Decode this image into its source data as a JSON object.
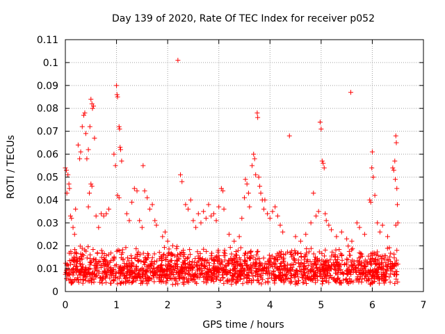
{
  "chart_data": {
    "type": "scatter",
    "title": "Day 139 of 2020, Rate Of TEC Index for receiver p052",
    "xlabel": "GPS time / hours",
    "ylabel": "ROTI / TECUs",
    "xlim": [
      0,
      7
    ],
    "ylim": [
      0,
      0.11
    ],
    "xticks": [
      "0",
      "1",
      "2",
      "3",
      "4",
      "5",
      "6",
      "7"
    ],
    "yticks": [
      "0",
      "0.01",
      "0.02",
      "0.03",
      "0.04",
      "0.05",
      "0.06",
      "0.07",
      "0.08",
      "0.09",
      "0.1",
      "0.11"
    ],
    "grid": true,
    "marker": "+",
    "color": "#ff0000",
    "series": [
      {
        "name": "ROTI",
        "points": [
          [
            0.0,
            0.054
          ],
          [
            0.02,
            0.053
          ],
          [
            0.03,
            0.043
          ],
          [
            0.05,
            0.051
          ],
          [
            0.07,
            0.047
          ],
          [
            0.08,
            0.045
          ],
          [
            0.1,
            0.033
          ],
          [
            0.12,
            0.032
          ],
          [
            0.15,
            0.028
          ],
          [
            0.18,
            0.025
          ],
          [
            0.2,
            0.036
          ],
          [
            0.25,
            0.064
          ],
          [
            0.28,
            0.058
          ],
          [
            0.3,
            0.061
          ],
          [
            0.33,
            0.072
          ],
          [
            0.36,
            0.077
          ],
          [
            0.38,
            0.078
          ],
          [
            0.4,
            0.069
          ],
          [
            0.42,
            0.058
          ],
          [
            0.45,
            0.062
          ],
          [
            0.48,
            0.072
          ],
          [
            0.5,
            0.084
          ],
          [
            0.52,
            0.082
          ],
          [
            0.53,
            0.08
          ],
          [
            0.55,
            0.081
          ],
          [
            0.57,
            0.067
          ],
          [
            0.5,
            0.047
          ],
          [
            0.52,
            0.046
          ],
          [
            0.45,
            0.037
          ],
          [
            0.47,
            0.043
          ],
          [
            0.6,
            0.033
          ],
          [
            0.65,
            0.028
          ],
          [
            0.7,
            0.034
          ],
          [
            0.75,
            0.033
          ],
          [
            0.8,
            0.034
          ],
          [
            0.85,
            0.036
          ],
          [
            0.95,
            0.06
          ],
          [
            0.98,
            0.055
          ],
          [
            1.0,
            0.09
          ],
          [
            1.01,
            0.086
          ],
          [
            1.02,
            0.085
          ],
          [
            1.05,
            0.072
          ],
          [
            1.06,
            0.071
          ],
          [
            1.07,
            0.063
          ],
          [
            1.08,
            0.062
          ],
          [
            1.1,
            0.057
          ],
          [
            1.02,
            0.042
          ],
          [
            1.05,
            0.041
          ],
          [
            1.2,
            0.034
          ],
          [
            1.25,
            0.031
          ],
          [
            1.3,
            0.039
          ],
          [
            1.35,
            0.045
          ],
          [
            1.4,
            0.044
          ],
          [
            1.45,
            0.031
          ],
          [
            1.5,
            0.028
          ],
          [
            1.52,
            0.055
          ],
          [
            1.55,
            0.044
          ],
          [
            1.6,
            0.041
          ],
          [
            1.65,
            0.036
          ],
          [
            1.7,
            0.038
          ],
          [
            1.75,
            0.031
          ],
          [
            1.78,
            0.029
          ],
          [
            1.9,
            0.024
          ],
          [
            1.95,
            0.026
          ],
          [
            2.0,
            0.022
          ],
          [
            2.1,
            0.02
          ],
          [
            2.2,
            0.101
          ],
          [
            2.25,
            0.051
          ],
          [
            2.28,
            0.048
          ],
          [
            2.35,
            0.038
          ],
          [
            2.4,
            0.036
          ],
          [
            2.45,
            0.04
          ],
          [
            2.5,
            0.031
          ],
          [
            2.55,
            0.028
          ],
          [
            2.6,
            0.034
          ],
          [
            2.65,
            0.03
          ],
          [
            2.7,
            0.035
          ],
          [
            2.75,
            0.032
          ],
          [
            2.8,
            0.038
          ],
          [
            2.85,
            0.033
          ],
          [
            2.9,
            0.034
          ],
          [
            2.95,
            0.031
          ],
          [
            3.0,
            0.037
          ],
          [
            3.05,
            0.045
          ],
          [
            3.08,
            0.044
          ],
          [
            3.1,
            0.036
          ],
          [
            3.2,
            0.025
          ],
          [
            3.3,
            0.022
          ],
          [
            3.4,
            0.024
          ],
          [
            3.45,
            0.032
          ],
          [
            3.5,
            0.041
          ],
          [
            3.52,
            0.049
          ],
          [
            3.55,
            0.047
          ],
          [
            3.58,
            0.043
          ],
          [
            3.6,
            0.037
          ],
          [
            3.65,
            0.055
          ],
          [
            3.68,
            0.06
          ],
          [
            3.7,
            0.058
          ],
          [
            3.72,
            0.051
          ],
          [
            3.75,
            0.078
          ],
          [
            3.76,
            0.076
          ],
          [
            3.78,
            0.05
          ],
          [
            3.8,
            0.046
          ],
          [
            3.82,
            0.043
          ],
          [
            3.85,
            0.04
          ],
          [
            3.88,
            0.036
          ],
          [
            3.9,
            0.04
          ],
          [
            3.95,
            0.034
          ],
          [
            4.0,
            0.032
          ],
          [
            4.05,
            0.035
          ],
          [
            4.1,
            0.037
          ],
          [
            4.15,
            0.033
          ],
          [
            4.2,
            0.029
          ],
          [
            4.25,
            0.026
          ],
          [
            4.38,
            0.068
          ],
          [
            4.5,
            0.024
          ],
          [
            4.6,
            0.022
          ],
          [
            4.7,
            0.025
          ],
          [
            4.8,
            0.03
          ],
          [
            4.85,
            0.043
          ],
          [
            4.9,
            0.033
          ],
          [
            4.95,
            0.035
          ],
          [
            4.98,
            0.074
          ],
          [
            5.0,
            0.071
          ],
          [
            5.02,
            0.057
          ],
          [
            5.04,
            0.056
          ],
          [
            5.06,
            0.054
          ],
          [
            5.08,
            0.034
          ],
          [
            5.1,
            0.031
          ],
          [
            5.15,
            0.029
          ],
          [
            5.2,
            0.027
          ],
          [
            5.3,
            0.024
          ],
          [
            5.4,
            0.026
          ],
          [
            5.5,
            0.023
          ],
          [
            5.58,
            0.087
          ],
          [
            5.6,
            0.022
          ],
          [
            5.7,
            0.03
          ],
          [
            5.75,
            0.028
          ],
          [
            5.85,
            0.025
          ],
          [
            5.95,
            0.04
          ],
          [
            5.97,
            0.039
          ],
          [
            5.99,
            0.054
          ],
          [
            6.0,
            0.061
          ],
          [
            6.02,
            0.05
          ],
          [
            6.05,
            0.042
          ],
          [
            6.1,
            0.03
          ],
          [
            6.15,
            0.026
          ],
          [
            6.2,
            0.029
          ],
          [
            6.3,
            0.024
          ],
          [
            6.4,
            0.054
          ],
          [
            6.42,
            0.053
          ],
          [
            6.44,
            0.057
          ],
          [
            6.45,
            0.049
          ],
          [
            6.46,
            0.068
          ],
          [
            6.47,
            0.065
          ],
          [
            6.48,
            0.045
          ],
          [
            6.49,
            0.038
          ],
          [
            6.5,
            0.03
          ],
          [
            6.46,
            0.029
          ],
          [
            6.48,
            0.018
          ],
          [
            6.5,
            0.012
          ]
        ]
      }
    ],
    "background_band": {
      "description": "dense cluster of low ROTI values",
      "x_range": [
        0,
        6.5
      ],
      "typical_min": 0.003,
      "typical_max": 0.02,
      "count": 1800,
      "seed": 139
    }
  }
}
